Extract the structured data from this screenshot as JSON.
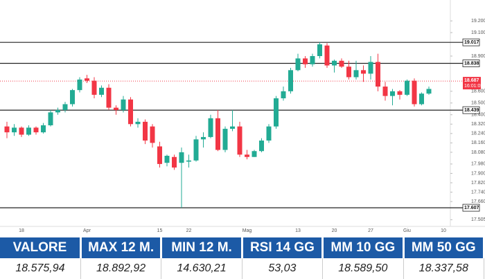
{
  "chart_data": {
    "type": "candlestick",
    "categories": [
      null,
      null,
      "18",
      null,
      null,
      null,
      null,
      null,
      null,
      null,
      null,
      "Apr",
      null,
      null,
      null,
      null,
      null,
      null,
      null,
      null,
      null,
      "15",
      null,
      null,
      null,
      "22",
      null,
      null,
      null,
      null,
      null,
      null,
      null,
      "Mag",
      null,
      null,
      null,
      null,
      null,
      null,
      "13",
      null,
      null,
      null,
      null,
      "20",
      null,
      null,
      null,
      null,
      "27",
      null,
      null,
      null,
      null,
      "Giu",
      null,
      null,
      null,
      null,
      "10",
      null
    ],
    "open": [
      18300,
      18250,
      18290,
      18230,
      18290,
      18250,
      18310,
      18420,
      18440,
      18490,
      18610,
      18710,
      18690,
      18570,
      18630,
      18460,
      18440,
      18530,
      18320,
      18340,
      18300,
      18130,
      17990,
      18040,
      17990,
      18000,
      18010,
      18190,
      18210,
      18370,
      18100,
      18280,
      18300,
      18060,
      18040,
      18090,
      18180,
      18300,
      18540,
      18600,
      18780,
      18880,
      18830,
      18900,
      18990,
      18820,
      18860,
      18810,
      18720,
      18780,
      18750,
      18850,
      18640,
      18560,
      18600,
      18570,
      18690,
      18490,
      18580,
      null,
      null,
      null
    ],
    "high": [
      18340,
      18320,
      18300,
      18310,
      18300,
      18330,
      18440,
      18460,
      18510,
      18620,
      18720,
      18740,
      18720,
      18650,
      18660,
      18480,
      18560,
      18550,
      18370,
      18360,
      18320,
      18170,
      18060,
      18060,
      18120,
      18060,
      18220,
      18250,
      18400,
      18440,
      18300,
      18440,
      18340,
      18100,
      18100,
      18200,
      18320,
      18560,
      18640,
      18800,
      18920,
      18900,
      18920,
      19017,
      19010,
      18870,
      18880,
      18860,
      18860,
      18820,
      18900,
      18920,
      18680,
      18620,
      18610,
      18700,
      18710,
      18590,
      18640,
      null,
      null,
      null
    ],
    "low": [
      18200,
      18220,
      18210,
      18220,
      18230,
      18240,
      18300,
      18400,
      18420,
      18470,
      18590,
      18670,
      18540,
      18550,
      18440,
      18400,
      18420,
      18300,
      18290,
      18150,
      18120,
      17950,
      17960,
      17930,
      17607,
      17950,
      18000,
      18120,
      18200,
      18090,
      18080,
      18260,
      18040,
      18020,
      18040,
      18080,
      18160,
      18280,
      18520,
      18580,
      18770,
      18800,
      18810,
      18880,
      18800,
      18760,
      18800,
      18700,
      18700,
      18680,
      18700,
      18600,
      18520,
      18480,
      18530,
      18560,
      18470,
      18480,
      18570,
      null,
      null,
      null
    ],
    "close": [
      18250,
      18290,
      18230,
      18290,
      18250,
      18310,
      18420,
      18440,
      18490,
      18610,
      18700,
      18690,
      18570,
      18630,
      18460,
      18440,
      18530,
      18320,
      18340,
      18180,
      18160,
      17980,
      18050,
      17950,
      18080,
      18010,
      18190,
      18210,
      18370,
      18100,
      18280,
      18300,
      18060,
      18040,
      18090,
      18180,
      18300,
      18540,
      18600,
      18780,
      18880,
      18830,
      18900,
      19000,
      18820,
      18860,
      18810,
      18720,
      18780,
      18750,
      18850,
      18640,
      18560,
      18600,
      18570,
      18690,
      18490,
      18580,
      18620,
      null,
      null,
      null
    ],
    "up_color": "#22ab94",
    "down_color": "#f23645",
    "ylim": [
      17460,
      19260
    ],
    "yticks": [
      {
        "value": 19200,
        "label": "19.200"
      },
      {
        "value": 19100,
        "label": "19.100"
      },
      {
        "value": 18900,
        "label": "18.900"
      },
      {
        "value": 18600,
        "label": "18.600"
      },
      {
        "value": 18500,
        "label": "18.500"
      },
      {
        "value": 18400,
        "label": "18.400"
      },
      {
        "value": 18320,
        "label": "18.320"
      },
      {
        "value": 18240,
        "label": "18.240"
      },
      {
        "value": 18160,
        "label": "18.160"
      },
      {
        "value": 18080,
        "label": "18.080"
      },
      {
        "value": 17980,
        "label": "17.980"
      },
      {
        "value": 17900,
        "label": "17.900"
      },
      {
        "value": 17820,
        "label": "17.820"
      },
      {
        "value": 17740,
        "label": "17.740"
      },
      {
        "value": 17660,
        "label": "17.660"
      },
      {
        "value": 17505,
        "label": "17.505"
      }
    ],
    "levels": [
      {
        "value": 19017,
        "label": "19.017"
      },
      {
        "value": 18838,
        "label": "18.838"
      },
      {
        "value": 18439,
        "label": "18.439"
      },
      {
        "value": 17607,
        "label": "17.607"
      }
    ],
    "last_price": {
      "value": 18687,
      "label": "18.687"
    },
    "countdown": "16:01:05"
  },
  "table": {
    "headers": [
      "VALORE",
      "MAX 12 M.",
      "MIN 12 M.",
      "RSI 14 GG",
      "MM 10 GG",
      "MM 50 GG"
    ],
    "rows": [
      [
        "18.575,94",
        "18.892,92",
        "14.630,21",
        "53,03",
        "18.589,50",
        "18.337,58"
      ]
    ]
  }
}
